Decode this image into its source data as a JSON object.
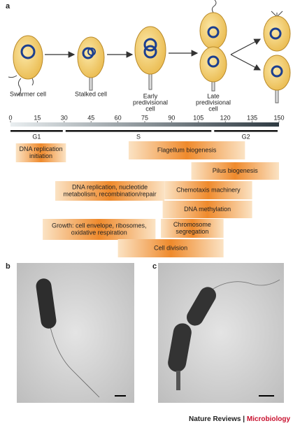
{
  "panel_labels": [
    "a",
    "b",
    "c"
  ],
  "cell_labels": [
    [
      "Swarmer cell"
    ],
    [
      "Stalked cell"
    ],
    [
      "Early",
      "predivisional",
      "cell"
    ],
    [
      "Late",
      "predivisional",
      "cell"
    ]
  ],
  "timeline": {
    "range": [
      0,
      150
    ],
    "ticks": [
      0,
      15,
      30,
      45,
      60,
      75,
      90,
      105,
      120,
      135,
      150
    ],
    "phases": [
      {
        "label": "G1",
        "start": 0,
        "end": 30
      },
      {
        "label": "S",
        "start": 30,
        "end": 113
      },
      {
        "label": "G2",
        "start": 113,
        "end": 150
      }
    ],
    "processes": [
      {
        "label": [
          "DNA replication",
          "initiation"
        ],
        "start": 3,
        "end": 31
      },
      {
        "label": [
          "Flagellum biogenesis"
        ],
        "start": 66,
        "end": 131
      },
      {
        "label": [
          "Pilus biogenesis"
        ],
        "start": 101,
        "end": 150
      },
      {
        "label": [
          "DNA replication, nucleotide",
          "metabolism, recombination/repair"
        ],
        "start": 25,
        "end": 86
      },
      {
        "label": [
          "Chemotaxis machinery"
        ],
        "start": 86,
        "end": 135
      },
      {
        "label": [
          "DNA methylation"
        ],
        "start": 85,
        "end": 135
      },
      {
        "label": [
          "Chromosome",
          "segregation"
        ],
        "start": 84,
        "end": 119
      },
      {
        "label": [
          "Growth: cell envelope, ribosomes,",
          "oxidative respiration"
        ],
        "start": 18,
        "end": 81
      },
      {
        "label": [
          "Cell division"
        ],
        "start": 60,
        "end": 119
      }
    ]
  },
  "footer": {
    "journal": "Nature Reviews",
    "separator": "|",
    "section": "Microbiology"
  }
}
